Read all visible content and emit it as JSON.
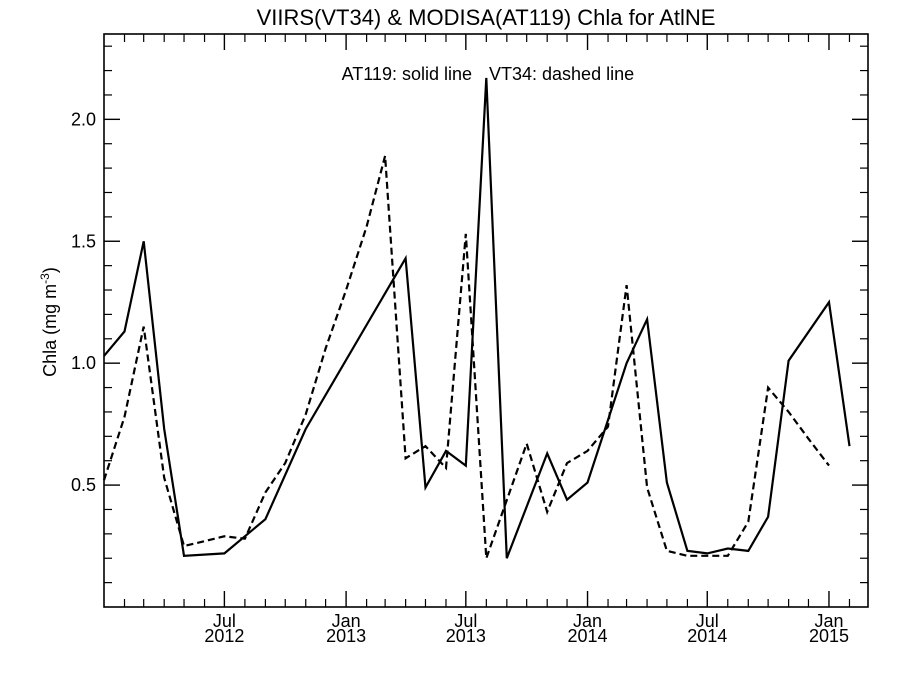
{
  "chart_data": {
    "type": "line",
    "title": "VIIRS(VT34) & MODISA(AT119)  Chla for AtlNE",
    "ylabel_main": "Chla (mg m",
    "ylabel_sup": "-3",
    "ylabel_close": ")",
    "annotation_solid": "AT119: solid line",
    "annotation_dashed": "VT34: dashed line",
    "ylim": [
      0.0,
      2.35
    ],
    "y_major_ticks": [
      0.5,
      1.0,
      1.5,
      2.0
    ],
    "y_major_labels": [
      "0.5",
      "1.0",
      "1.5",
      "2.0"
    ],
    "y_minor_ticks": [
      0.1,
      0.2,
      0.3,
      0.4,
      0.6,
      0.7,
      0.8,
      0.9,
      1.1,
      1.2,
      1.3,
      1.4,
      1.6,
      1.7,
      1.8,
      1.9,
      2.1,
      2.2,
      2.3
    ],
    "xlim": [
      "2012-01-01",
      "2015-03-01"
    ],
    "x_ticks": [
      {
        "date": "2012-07-01",
        "month": "Jul",
        "year": "2012"
      },
      {
        "date": "2013-01-01",
        "month": "Jan",
        "year": "2013"
      },
      {
        "date": "2013-07-01",
        "month": "Jul",
        "year": "2013"
      },
      {
        "date": "2014-01-01",
        "month": "Jan",
        "year": "2014"
      },
      {
        "date": "2014-07-01",
        "month": "Jul",
        "year": "2014"
      },
      {
        "date": "2015-01-01",
        "month": "Jan",
        "year": "2015"
      }
    ],
    "x_minor_ticks": [
      "2012-02-01",
      "2012-03-01",
      "2012-04-01",
      "2012-05-01",
      "2012-06-01",
      "2012-08-01",
      "2012-09-01",
      "2012-10-01",
      "2012-11-01",
      "2012-12-01",
      "2013-02-01",
      "2013-03-01",
      "2013-04-01",
      "2013-05-01",
      "2013-06-01",
      "2013-08-01",
      "2013-09-01",
      "2013-10-01",
      "2013-11-01",
      "2013-12-01",
      "2014-02-01",
      "2014-03-01",
      "2014-04-01",
      "2014-05-01",
      "2014-06-01",
      "2014-08-01",
      "2014-09-01",
      "2014-10-01",
      "2014-11-01",
      "2014-12-01",
      "2015-02-01"
    ],
    "series": [
      {
        "key": "AT119",
        "style": "solid",
        "color": "#000000",
        "points": [
          [
            "2012-01-01",
            1.03
          ],
          [
            "2012-02-01",
            1.13
          ],
          [
            "2012-03-01",
            1.5
          ],
          [
            "2012-04-01",
            0.73
          ],
          [
            "2012-05-01",
            0.21
          ],
          [
            "2012-07-01",
            0.22
          ],
          [
            "2012-09-01",
            0.36
          ],
          [
            "2012-11-01",
            0.73
          ],
          [
            "2013-04-01",
            1.43
          ],
          [
            "2013-05-01",
            0.49
          ],
          [
            "2013-06-01",
            0.64
          ],
          [
            "2013-07-01",
            0.58
          ],
          [
            "2013-08-01",
            2.17
          ],
          [
            "2013-09-01",
            0.2
          ],
          [
            "2013-11-01",
            0.63
          ],
          [
            "2013-12-01",
            0.44
          ],
          [
            "2014-01-01",
            0.51
          ],
          [
            "2014-03-01",
            1.0
          ],
          [
            "2014-04-01",
            1.18
          ],
          [
            "2014-05-01",
            0.51
          ],
          [
            "2014-06-01",
            0.23
          ],
          [
            "2014-07-01",
            0.22
          ],
          [
            "2014-08-01",
            0.24
          ],
          [
            "2014-09-01",
            0.23
          ],
          [
            "2014-10-01",
            0.37
          ],
          [
            "2014-11-01",
            1.01
          ],
          [
            "2015-01-01",
            1.25
          ],
          [
            "2015-02-01",
            0.66
          ]
        ]
      },
      {
        "key": "VT34",
        "style": "dashed",
        "color": "#000000",
        "points": [
          [
            "2012-01-01",
            0.52
          ],
          [
            "2012-02-01",
            0.78
          ],
          [
            "2012-03-01",
            1.15
          ],
          [
            "2012-04-01",
            0.53
          ],
          [
            "2012-05-01",
            0.25
          ],
          [
            "2012-06-01",
            0.27
          ],
          [
            "2012-07-01",
            0.29
          ],
          [
            "2012-08-01",
            0.28
          ],
          [
            "2012-09-01",
            0.47
          ],
          [
            "2012-10-01",
            0.59
          ],
          [
            "2012-11-01",
            0.79
          ],
          [
            "2012-12-01",
            1.06
          ],
          [
            "2013-01-01",
            1.3
          ],
          [
            "2013-02-01",
            1.56
          ],
          [
            "2013-03-01",
            1.85
          ],
          [
            "2013-04-01",
            0.61
          ],
          [
            "2013-05-01",
            0.66
          ],
          [
            "2013-06-01",
            0.57
          ],
          [
            "2013-07-01",
            1.53
          ],
          [
            "2013-08-01",
            0.2
          ],
          [
            "2013-10-01",
            0.67
          ],
          [
            "2013-11-01",
            0.39
          ],
          [
            "2013-12-01",
            0.59
          ],
          [
            "2014-01-01",
            0.64
          ],
          [
            "2014-02-01",
            0.74
          ],
          [
            "2014-03-01",
            1.32
          ],
          [
            "2014-04-01",
            0.49
          ],
          [
            "2014-05-01",
            0.23
          ],
          [
            "2014-06-01",
            0.21
          ],
          [
            "2014-07-01",
            0.21
          ],
          [
            "2014-08-01",
            0.21
          ],
          [
            "2014-09-01",
            0.35
          ],
          [
            "2014-10-01",
            0.9
          ],
          [
            "2014-11-01",
            0.8
          ],
          [
            "2014-12-01",
            0.69
          ],
          [
            "2015-01-01",
            0.58
          ]
        ]
      }
    ]
  }
}
